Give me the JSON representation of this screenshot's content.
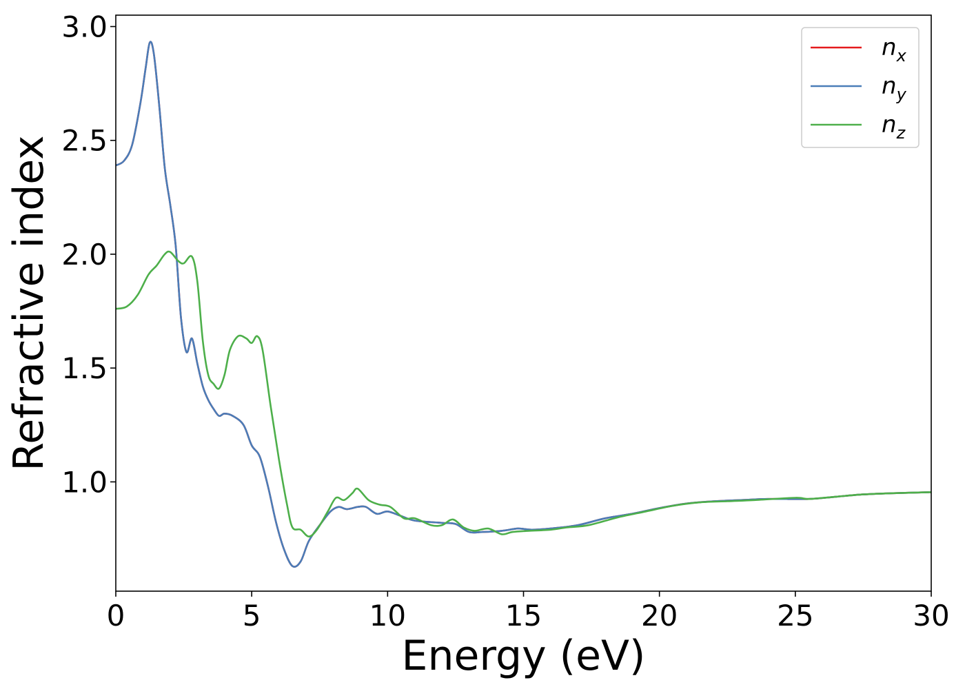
{
  "chart_data": {
    "type": "line",
    "title": "",
    "xlabel": "Energy (eV)",
    "ylabel": "Refractive index",
    "xlim": [
      0,
      30
    ],
    "ylim": [
      0.52,
      3.05
    ],
    "xticks": [
      0,
      5,
      10,
      15,
      20,
      25,
      30
    ],
    "yticks": [
      1.0,
      1.5,
      2.0,
      2.5,
      3.0
    ],
    "ytick_labels": [
      "1.0",
      "1.5",
      "2.0",
      "2.5",
      "3.0"
    ],
    "grid": false,
    "legend_position": "top-right",
    "series": [
      {
        "name": "n",
        "sub": "x",
        "color": "#e41a1c",
        "points": [
          [
            0,
            2.39
          ],
          [
            0.3,
            2.41
          ],
          [
            0.6,
            2.48
          ],
          [
            0.9,
            2.66
          ],
          [
            1.1,
            2.82
          ],
          [
            1.25,
            2.93
          ],
          [
            1.4,
            2.88
          ],
          [
            1.6,
            2.65
          ],
          [
            1.8,
            2.38
          ],
          [
            2.0,
            2.22
          ],
          [
            2.2,
            2.04
          ],
          [
            2.4,
            1.72
          ],
          [
            2.6,
            1.57
          ],
          [
            2.8,
            1.63
          ],
          [
            3.0,
            1.52
          ],
          [
            3.2,
            1.42
          ],
          [
            3.4,
            1.36
          ],
          [
            3.6,
            1.32
          ],
          [
            3.8,
            1.29
          ],
          [
            4.0,
            1.3
          ],
          [
            4.3,
            1.29
          ],
          [
            4.7,
            1.25
          ],
          [
            5.0,
            1.16
          ],
          [
            5.3,
            1.11
          ],
          [
            5.6,
            0.98
          ],
          [
            5.9,
            0.82
          ],
          [
            6.2,
            0.7
          ],
          [
            6.5,
            0.63
          ],
          [
            6.8,
            0.65
          ],
          [
            7.1,
            0.74
          ],
          [
            7.5,
            0.81
          ],
          [
            7.9,
            0.87
          ],
          [
            8.2,
            0.89
          ],
          [
            8.5,
            0.88
          ],
          [
            8.9,
            0.89
          ],
          [
            9.2,
            0.89
          ],
          [
            9.6,
            0.86
          ],
          [
            10.0,
            0.87
          ],
          [
            10.5,
            0.85
          ],
          [
            11.0,
            0.83
          ],
          [
            12.0,
            0.82
          ],
          [
            12.5,
            0.815
          ],
          [
            13.0,
            0.78
          ],
          [
            13.5,
            0.78
          ],
          [
            14.2,
            0.785
          ],
          [
            14.8,
            0.795
          ],
          [
            15.3,
            0.79
          ],
          [
            16.0,
            0.795
          ],
          [
            17.0,
            0.81
          ],
          [
            18.0,
            0.84
          ],
          [
            19.0,
            0.86
          ],
          [
            20.0,
            0.885
          ],
          [
            21.0,
            0.905
          ],
          [
            22.0,
            0.915
          ],
          [
            23.0,
            0.92
          ],
          [
            24.0,
            0.925
          ],
          [
            25.5,
            0.925
          ],
          [
            26.5,
            0.935
          ],
          [
            27.5,
            0.945
          ],
          [
            28.5,
            0.95
          ],
          [
            30.0,
            0.955
          ]
        ]
      },
      {
        "name": "n",
        "sub": "y",
        "color": "#4a7db8",
        "points": [
          [
            0,
            2.39
          ],
          [
            0.3,
            2.41
          ],
          [
            0.6,
            2.48
          ],
          [
            0.9,
            2.66
          ],
          [
            1.1,
            2.82
          ],
          [
            1.25,
            2.93
          ],
          [
            1.4,
            2.88
          ],
          [
            1.6,
            2.65
          ],
          [
            1.8,
            2.38
          ],
          [
            2.0,
            2.22
          ],
          [
            2.2,
            2.04
          ],
          [
            2.4,
            1.72
          ],
          [
            2.6,
            1.57
          ],
          [
            2.8,
            1.63
          ],
          [
            3.0,
            1.52
          ],
          [
            3.2,
            1.42
          ],
          [
            3.4,
            1.36
          ],
          [
            3.6,
            1.32
          ],
          [
            3.8,
            1.29
          ],
          [
            4.0,
            1.3
          ],
          [
            4.3,
            1.29
          ],
          [
            4.7,
            1.25
          ],
          [
            5.0,
            1.16
          ],
          [
            5.3,
            1.11
          ],
          [
            5.6,
            0.98
          ],
          [
            5.9,
            0.82
          ],
          [
            6.2,
            0.7
          ],
          [
            6.5,
            0.63
          ],
          [
            6.8,
            0.65
          ],
          [
            7.1,
            0.74
          ],
          [
            7.5,
            0.81
          ],
          [
            7.9,
            0.87
          ],
          [
            8.2,
            0.89
          ],
          [
            8.5,
            0.88
          ],
          [
            8.9,
            0.89
          ],
          [
            9.2,
            0.89
          ],
          [
            9.6,
            0.86
          ],
          [
            10.0,
            0.87
          ],
          [
            10.5,
            0.85
          ],
          [
            11.0,
            0.83
          ],
          [
            12.0,
            0.82
          ],
          [
            12.5,
            0.815
          ],
          [
            13.0,
            0.78
          ],
          [
            13.5,
            0.78
          ],
          [
            14.2,
            0.785
          ],
          [
            14.8,
            0.795
          ],
          [
            15.3,
            0.79
          ],
          [
            16.0,
            0.795
          ],
          [
            17.0,
            0.81
          ],
          [
            18.0,
            0.84
          ],
          [
            19.0,
            0.86
          ],
          [
            20.0,
            0.885
          ],
          [
            21.0,
            0.905
          ],
          [
            22.0,
            0.915
          ],
          [
            23.0,
            0.92
          ],
          [
            24.0,
            0.925
          ],
          [
            25.5,
            0.925
          ],
          [
            26.5,
            0.935
          ],
          [
            27.5,
            0.945
          ],
          [
            28.5,
            0.95
          ],
          [
            30.0,
            0.955
          ]
        ]
      },
      {
        "name": "n",
        "sub": "z",
        "color": "#4daf4a",
        "points": [
          [
            0,
            1.76
          ],
          [
            0.4,
            1.77
          ],
          [
            0.8,
            1.82
          ],
          [
            1.2,
            1.91
          ],
          [
            1.5,
            1.95
          ],
          [
            1.8,
            2.0
          ],
          [
            2.0,
            2.01
          ],
          [
            2.3,
            1.97
          ],
          [
            2.5,
            1.96
          ],
          [
            2.8,
            1.99
          ],
          [
            3.0,
            1.88
          ],
          [
            3.2,
            1.62
          ],
          [
            3.4,
            1.47
          ],
          [
            3.6,
            1.43
          ],
          [
            3.8,
            1.41
          ],
          [
            4.0,
            1.47
          ],
          [
            4.2,
            1.58
          ],
          [
            4.5,
            1.64
          ],
          [
            4.8,
            1.63
          ],
          [
            5.0,
            1.61
          ],
          [
            5.2,
            1.64
          ],
          [
            5.4,
            1.58
          ],
          [
            5.7,
            1.33
          ],
          [
            6.0,
            1.1
          ],
          [
            6.3,
            0.9
          ],
          [
            6.5,
            0.8
          ],
          [
            6.8,
            0.79
          ],
          [
            7.1,
            0.76
          ],
          [
            7.4,
            0.79
          ],
          [
            7.8,
            0.87
          ],
          [
            8.1,
            0.93
          ],
          [
            8.4,
            0.92
          ],
          [
            8.7,
            0.95
          ],
          [
            8.9,
            0.97
          ],
          [
            9.3,
            0.92
          ],
          [
            9.7,
            0.9
          ],
          [
            10.1,
            0.89
          ],
          [
            10.6,
            0.84
          ],
          [
            11.0,
            0.84
          ],
          [
            11.6,
            0.81
          ],
          [
            12.0,
            0.81
          ],
          [
            12.4,
            0.835
          ],
          [
            12.8,
            0.8
          ],
          [
            13.2,
            0.785
          ],
          [
            13.7,
            0.795
          ],
          [
            14.2,
            0.77
          ],
          [
            14.6,
            0.78
          ],
          [
            15.2,
            0.785
          ],
          [
            16.0,
            0.79
          ],
          [
            16.6,
            0.8
          ],
          [
            17.4,
            0.81
          ],
          [
            18.5,
            0.845
          ],
          [
            19.5,
            0.87
          ],
          [
            20.5,
            0.895
          ],
          [
            21.5,
            0.91
          ],
          [
            22.5,
            0.915
          ],
          [
            23.5,
            0.92
          ],
          [
            25.0,
            0.93
          ],
          [
            25.5,
            0.925
          ],
          [
            26.5,
            0.935
          ],
          [
            27.5,
            0.945
          ],
          [
            28.5,
            0.95
          ],
          [
            30.0,
            0.955
          ]
        ]
      }
    ]
  }
}
